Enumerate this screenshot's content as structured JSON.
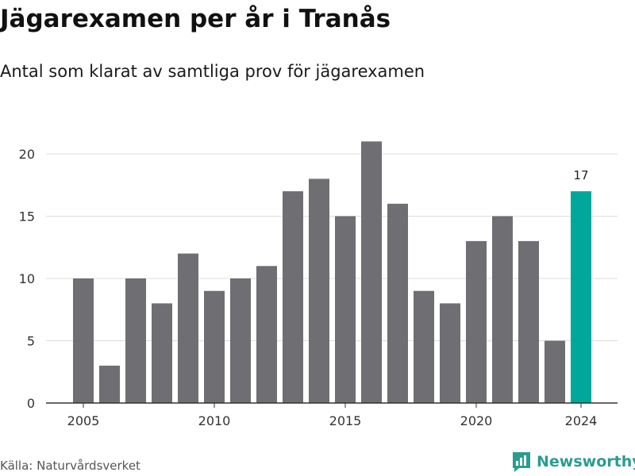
{
  "title": "Jägarexamen per år i Tranås",
  "subtitle": "Antal som klarat av samtliga prov för jägarexamen",
  "source": "Källa: Naturvårdsverket",
  "brand": {
    "name": "Newsworthy",
    "icon": "newsworthy-logo-icon"
  },
  "colors": {
    "bar": "#6e6e73",
    "highlight": "#00a89b",
    "grid": "#dddddd",
    "axis": "#333333",
    "brand": "#2a9d8f"
  },
  "chart_data": {
    "type": "bar",
    "x": [
      2005,
      2006,
      2007,
      2008,
      2009,
      2010,
      2011,
      2012,
      2013,
      2014,
      2015,
      2016,
      2017,
      2018,
      2019,
      2020,
      2021,
      2022,
      2023,
      2024
    ],
    "values": [
      10,
      3,
      10,
      8,
      12,
      9,
      10,
      11,
      17,
      18,
      15,
      21,
      16,
      9,
      8,
      13,
      15,
      13,
      5,
      17
    ],
    "x_ticks": [
      2005,
      2010,
      2015,
      2020,
      2024
    ],
    "y_ticks": [
      0,
      5,
      10,
      15,
      20
    ],
    "ylim": [
      0,
      21
    ],
    "grid": true,
    "highlight": {
      "x": 2024,
      "label": "17"
    },
    "xlabel": "",
    "ylabel": ""
  }
}
